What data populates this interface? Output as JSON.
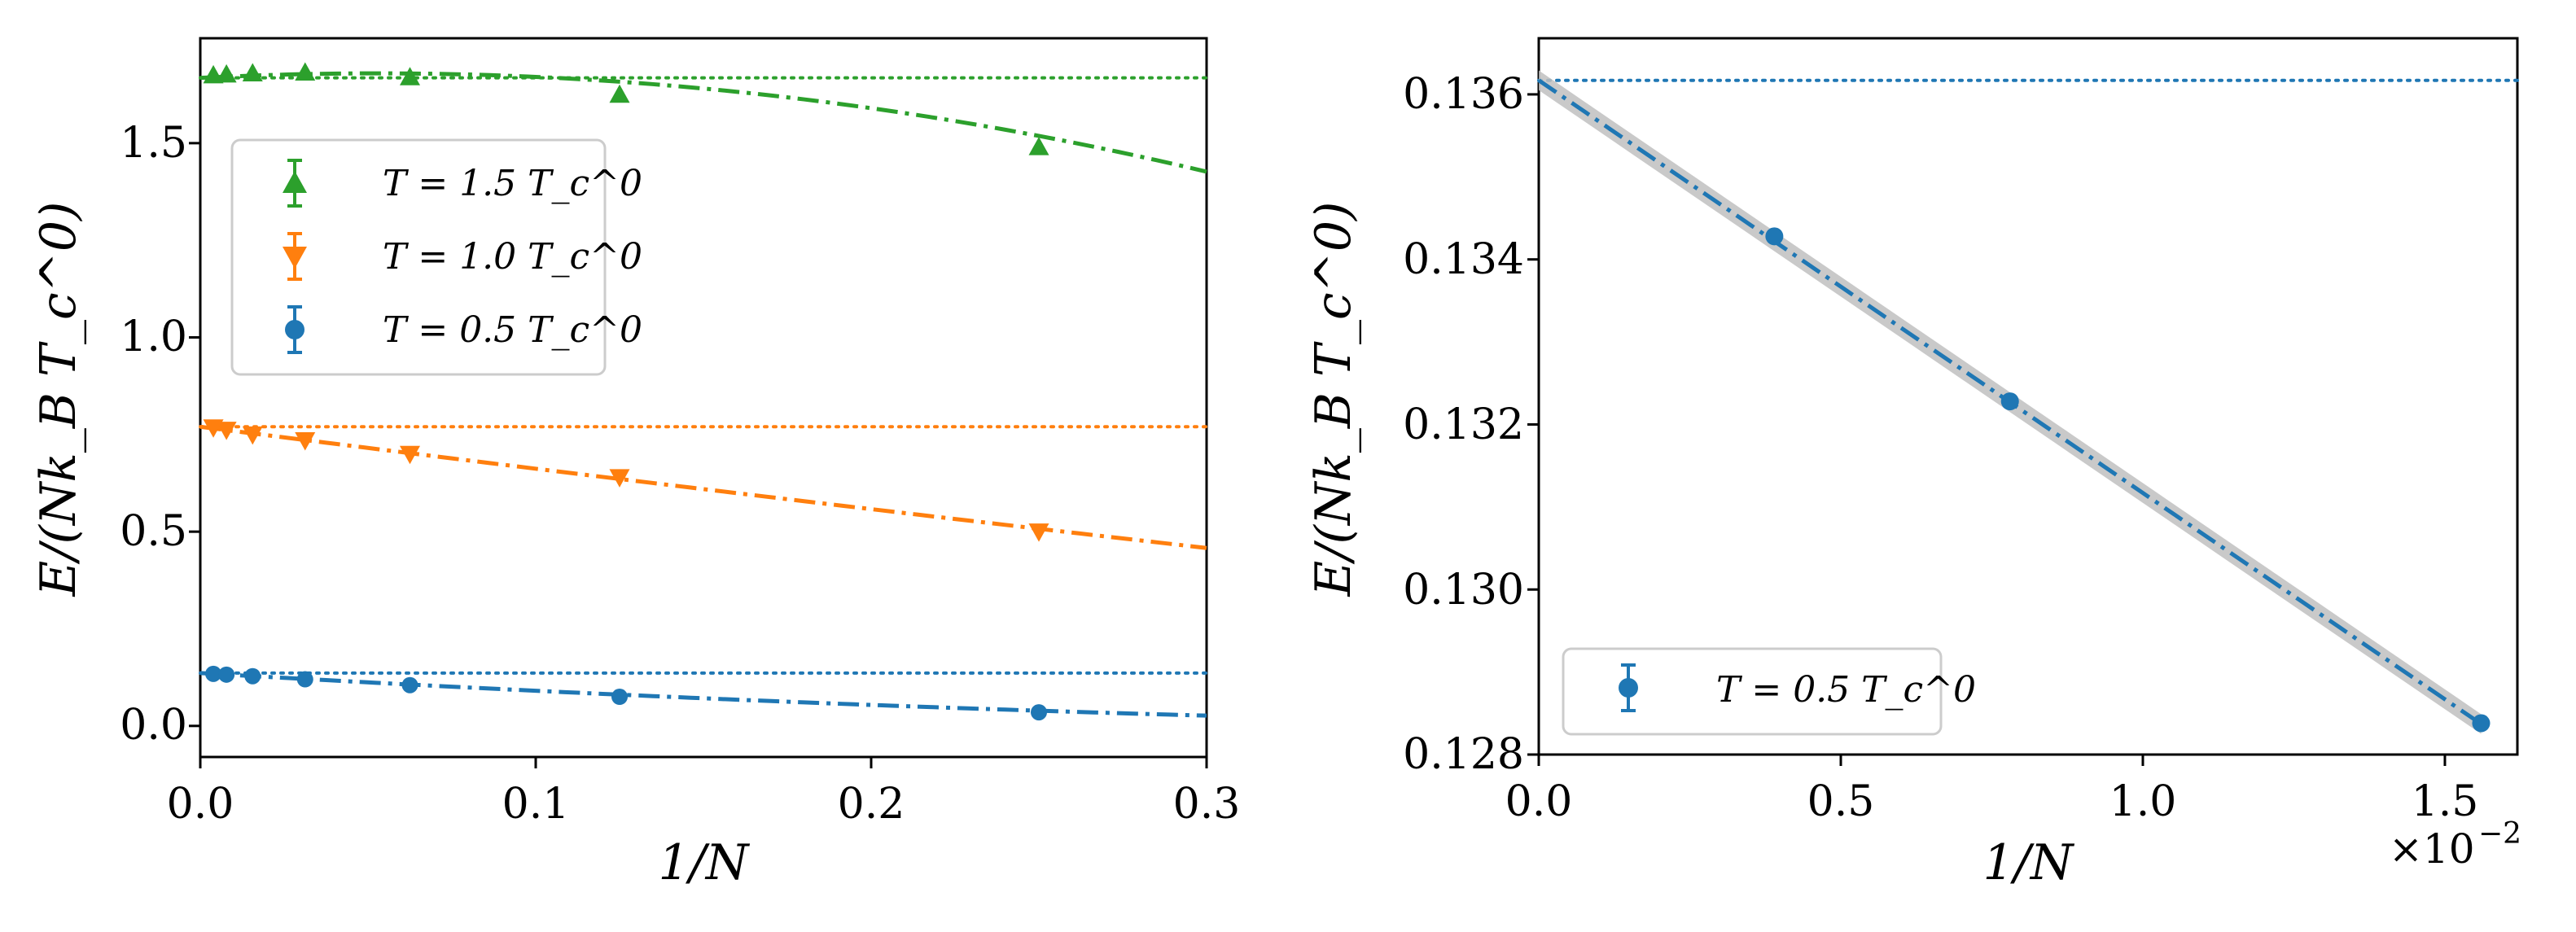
{
  "colors": {
    "T15": "#2ca02c",
    "T10": "#ff7f0e",
    "T05": "#1f77b4",
    "band": "#c0c0c0",
    "frame": "#000000"
  },
  "chart_data": [
    {
      "type": "scatter",
      "title": "",
      "xlabel": "1/N",
      "ylabel": "E/(Nk_B T_c^0)",
      "xlim": [
        0.0,
        0.3
      ],
      "ylim": [
        -0.08,
        1.77
      ],
      "xticks": [
        0.0,
        0.1,
        0.2,
        0.3
      ],
      "xtick_labels": [
        "0.0",
        "0.1",
        "0.2",
        "0.3"
      ],
      "yticks": [
        0.0,
        0.5,
        1.0,
        1.5
      ],
      "ytick_labels": [
        "0.0",
        "0.5",
        "1.0",
        "1.5"
      ],
      "legend_position": "upper-left",
      "series": [
        {
          "name": "T = 1.5 T_c^0",
          "color_key": "T15",
          "marker": "triangle-up",
          "x": [
            0.0039,
            0.0078,
            0.0156,
            0.03125,
            0.0625,
            0.125,
            0.25
          ],
          "y": [
            1.675,
            1.677,
            1.68,
            1.682,
            1.67,
            1.625,
            1.49
          ],
          "asymptote": 1.668,
          "fit": {
            "a": 1.668,
            "b": 0.44,
            "c": -4.15,
            "xmin": 0.0,
            "xmax": 0.3
          }
        },
        {
          "name": "T = 1.0 T_c^0",
          "color_key": "T10",
          "marker": "triangle-down",
          "x": [
            0.0039,
            0.0078,
            0.0156,
            0.03125,
            0.0625,
            0.125,
            0.25
          ],
          "y": [
            0.768,
            0.762,
            0.75,
            0.735,
            0.7,
            0.64,
            0.5
          ],
          "asymptote": 0.77,
          "fit": {
            "a": 0.77,
            "b": -1.1,
            "c": 0.2,
            "xmin": 0.0,
            "xmax": 0.3
          }
        },
        {
          "name": "T = 0.5 T_c^0",
          "color_key": "T05",
          "marker": "circle",
          "x": [
            0.0039,
            0.0078,
            0.0156,
            0.03125,
            0.0625,
            0.125,
            0.25
          ],
          "y": [
            0.134,
            0.132,
            0.128,
            0.12,
            0.105,
            0.075,
            0.035
          ],
          "asymptote": 0.136,
          "fit": {
            "a": 0.136,
            "b": -0.5,
            "c": 0.45,
            "xmin": 0.0,
            "xmax": 0.3
          }
        }
      ]
    },
    {
      "type": "scatter",
      "title": "",
      "xlabel": "1/N",
      "ylabel": "E/(Nk_B T_c^0)",
      "xlim": [
        0.0,
        0.0162
      ],
      "ylim": [
        0.128,
        0.13668
      ],
      "xticks": [
        0.0,
        0.005,
        0.01,
        0.015
      ],
      "xtick_labels": [
        "0.0",
        "0.5",
        "1.0",
        "1.5"
      ],
      "x_offset_text": "×10",
      "x_offset_exponent": "−2",
      "yticks": [
        0.128,
        0.13,
        0.132,
        0.134,
        0.136
      ],
      "ytick_labels": [
        "0.128",
        "0.130",
        "0.132",
        "0.134",
        "0.136"
      ],
      "legend_position": "lower-left",
      "series": [
        {
          "name": "T = 0.5 T_c^0",
          "color_key": "T05",
          "marker": "circle",
          "x": [
            0.0039,
            0.0078,
            0.0156
          ],
          "y": [
            0.13428,
            0.13228,
            0.12838
          ],
          "asymptote": 0.13617,
          "fit": {
            "a": 0.13617,
            "b": -0.5,
            "c": 0.0,
            "xmin": 0.0,
            "xmax": 0.0156
          },
          "band_halfwidth": 0.00012
        }
      ]
    }
  ]
}
